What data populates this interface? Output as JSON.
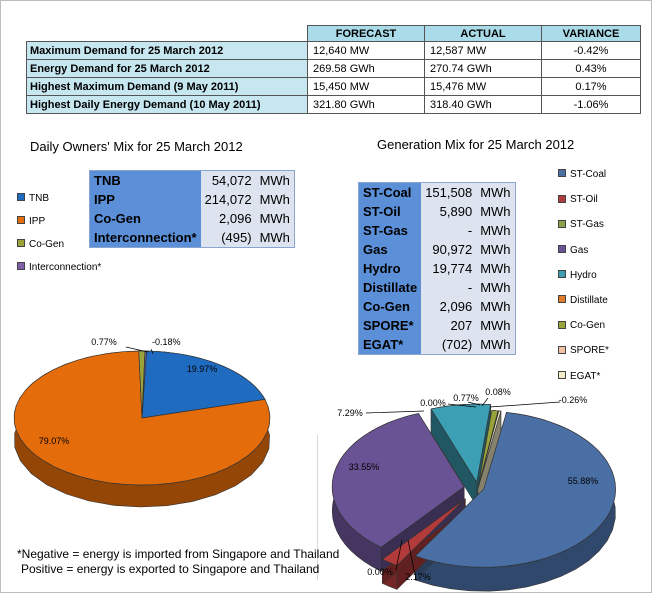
{
  "summary": {
    "headers": [
      "FORECAST",
      "ACTUAL",
      "VARIANCE"
    ],
    "rows": [
      {
        "label": "Maximum Demand for 25 March 2012",
        "forecast": "12,640  MW",
        "actual": "12,587  MW",
        "variance": "-0.42%"
      },
      {
        "label": "Energy Demand for 25 March 2012",
        "forecast": "269.58  GWh",
        "actual": "270.74  GWh",
        "variance": "0.43%"
      },
      {
        "label": "Highest Maximum Demand (9 May 2011)",
        "forecast": "15,450  MW",
        "actual": "15,476  MW",
        "variance": "0.17%"
      },
      {
        "label": "Highest Daily Energy Demand (10 May 2011)",
        "forecast": "321.80  GWh",
        "actual": "318.40  GWh",
        "variance": "-1.06%"
      }
    ]
  },
  "colors": {
    "TNB": "#1f6bbf",
    "IPP": "#e46c0a",
    "Co-Gen": "#9aa23a",
    "Interconnection": "#7e5fa8",
    "ST-Coal": "#4a6fa5",
    "ST-Oil": "#b23a3a",
    "ST-Gas": "#8aa04a",
    "Gas": "#6a5395",
    "Hydro": "#3c9fb3",
    "Distillate": "#e07b2a",
    "SPORE": "#f2c0a4",
    "EGAT": "#f3ebc6"
  },
  "chart_data": [
    {
      "type": "pie",
      "title": "Daily Owners' Mix for 25 March 2012",
      "legend_placement": "left",
      "categories": [
        "TNB",
        "IPP",
        "Co-Gen",
        "Interconnection*"
      ],
      "values": [
        19.97,
        79.07,
        0.77,
        -0.18
      ],
      "data_labels": [
        "19.97%",
        "79.07%",
        "0.77%",
        "-0.18%"
      ],
      "table": [
        {
          "name": "TNB",
          "value": "54,072",
          "unit": "MWh"
        },
        {
          "name": "IPP",
          "value": "214,072",
          "unit": "MWh"
        },
        {
          "name": "Co-Gen",
          "value": "2,096",
          "unit": "MWh"
        },
        {
          "name": "Interconnection*",
          "value": "(495)",
          "unit": "MWh"
        }
      ]
    },
    {
      "type": "pie",
      "title": "Generation Mix for 25 March 2012",
      "legend_placement": "right",
      "categories": [
        "ST-Coal",
        "ST-Oil",
        "ST-Gas",
        "Gas",
        "Hydro",
        "Distillate",
        "Co-Gen",
        "SPORE*",
        "EGAT*"
      ],
      "values": [
        55.88,
        2.17,
        0.0,
        33.55,
        7.29,
        0.0,
        0.77,
        0.08,
        -0.26
      ],
      "data_labels": [
        "55.88%",
        "2.17%",
        "0.00%",
        "33.55%",
        "7.29%",
        "0.00%",
        "0.77%",
        "0.08%",
        "-0.26%"
      ],
      "table": [
        {
          "name": "ST-Coal",
          "value": "151,508",
          "unit": "MWh"
        },
        {
          "name": "ST-Oil",
          "value": "5,890",
          "unit": "MWh"
        },
        {
          "name": "ST-Gas",
          "value": "-",
          "unit": "MWh"
        },
        {
          "name": "Gas",
          "value": "90,972",
          "unit": "MWh"
        },
        {
          "name": "Hydro",
          "value": "19,774",
          "unit": "MWh"
        },
        {
          "name": "Distillate",
          "value": "-",
          "unit": "MWh"
        },
        {
          "name": "Co-Gen",
          "value": "2,096",
          "unit": "MWh"
        },
        {
          "name": "SPORE*",
          "value": "207",
          "unit": "MWh"
        },
        {
          "name": "EGAT*",
          "value": "(702)",
          "unit": "MWh"
        }
      ]
    }
  ],
  "notes": {
    "line1": "*Negative = energy is imported from Singapore and Thailand",
    "line2": "Positive = energy is exported to Singapore and Thailand"
  }
}
